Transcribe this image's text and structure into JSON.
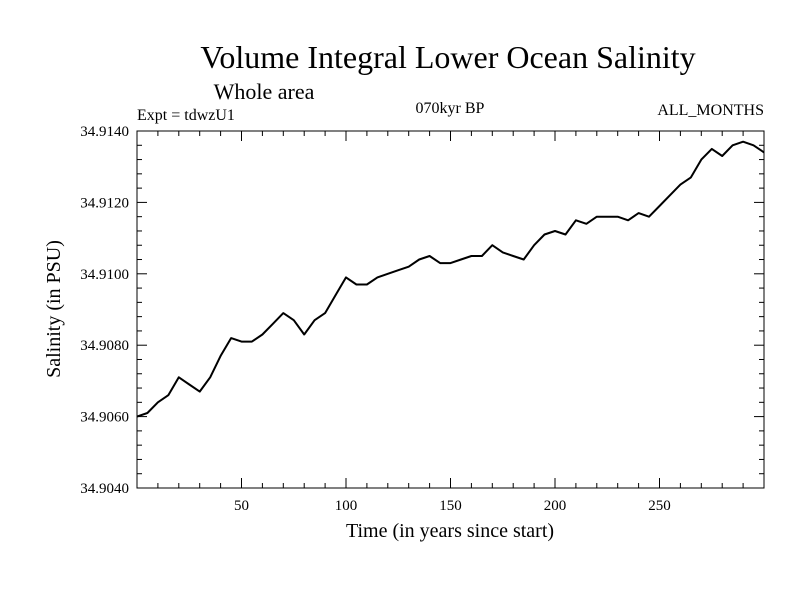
{
  "chart_data": {
    "type": "line",
    "title": "Volume Integral Lower Ocean Salinity",
    "subtitle": "Whole area",
    "expt_label": "Expt = tdwzU1",
    "period_label": "070kyr BP",
    "months_label": "ALL_MONTHS",
    "xlabel": "Time (in years since start)",
    "ylabel": "Salinity (in PSU)",
    "xlim": [
      0,
      300
    ],
    "ylim": [
      34.904,
      34.914
    ],
    "x_ticks": [
      50,
      100,
      150,
      200,
      250
    ],
    "x_tick_labels": [
      "50",
      "100",
      "150",
      "200",
      "250"
    ],
    "y_ticks": [
      34.904,
      34.906,
      34.908,
      34.91,
      34.912,
      34.914
    ],
    "y_tick_labels": [
      "34.9040",
      "34.9060",
      "34.9080",
      "34.9100",
      "34.9120",
      "34.9140"
    ],
    "series": [
      {
        "name": "Salinity",
        "x": [
          0,
          5,
          10,
          15,
          20,
          25,
          30,
          35,
          40,
          45,
          50,
          55,
          60,
          65,
          70,
          75,
          80,
          85,
          90,
          95,
          100,
          105,
          110,
          115,
          120,
          125,
          130,
          135,
          140,
          145,
          150,
          155,
          160,
          165,
          170,
          175,
          180,
          185,
          190,
          195,
          200,
          205,
          210,
          215,
          220,
          225,
          230,
          235,
          240,
          245,
          250,
          255,
          260,
          265,
          270,
          275,
          280,
          285,
          290,
          295,
          300
        ],
        "y": [
          34.906,
          34.9061,
          34.9064,
          34.9066,
          34.9071,
          34.9069,
          34.9067,
          34.9071,
          34.9077,
          34.9082,
          34.9081,
          34.9081,
          34.9083,
          34.9086,
          34.9089,
          34.9087,
          34.9083,
          34.9087,
          34.9089,
          34.9094,
          34.9099,
          34.9097,
          34.9097,
          34.9099,
          34.91,
          34.9101,
          34.9102,
          34.9104,
          34.9105,
          34.9103,
          34.9103,
          34.9104,
          34.9105,
          34.9105,
          34.9108,
          34.9106,
          34.9105,
          34.9104,
          34.9108,
          34.9111,
          34.9112,
          34.9111,
          34.9115,
          34.9114,
          34.9116,
          34.9116,
          34.9116,
          34.9115,
          34.9117,
          34.9116,
          34.9119,
          34.9122,
          34.9125,
          34.9127,
          34.9132,
          34.9135,
          34.9133,
          34.9136,
          34.9137,
          34.9136,
          34.9134
        ]
      }
    ]
  }
}
